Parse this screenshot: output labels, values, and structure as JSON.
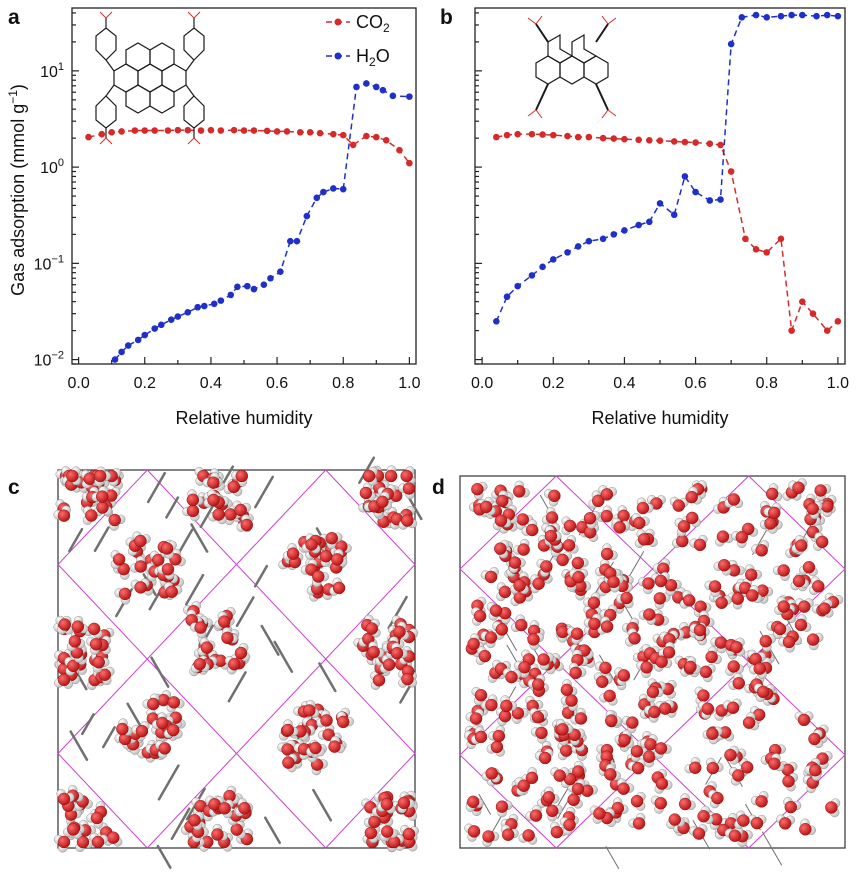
{
  "panels": {
    "a": "a",
    "b": "b",
    "c": "c",
    "d": "d"
  },
  "colors": {
    "co2": "#d62a2a",
    "h2o": "#1f2fc8",
    "oxygen": "#d21c1c",
    "hydrogen": "#eeeeee",
    "framework": "#707070",
    "cell_edge": "#d040d0"
  },
  "legend": {
    "co2_base": "CO",
    "co2_sub": "2",
    "h2o_h": "H",
    "h2o_sub": "2",
    "h2o_o": "O"
  },
  "y_axis": {
    "title_main": "Gas adsorption (mmol g",
    "title_sup": "−1",
    "title_end": ")",
    "ticks": [
      {
        "base": "10",
        "exp": "−2"
      },
      {
        "base": "10",
        "exp": "−1"
      },
      {
        "base": "10",
        "exp": "0"
      },
      {
        "base": "10",
        "exp": "1"
      }
    ]
  },
  "chart_data": [
    {
      "type": "line",
      "panel": "a",
      "xlabel": "Relative humidity",
      "ylabel": "Gas adsorption (mmol g−1)",
      "y_scale": "log",
      "xlim": [
        -0.02,
        1.02
      ],
      "ylim": [
        0.009,
        45
      ],
      "xticks": [
        "0.0",
        "0.2",
        "0.4",
        "0.6",
        "0.8",
        "1.0"
      ],
      "legend_position": "top-right",
      "series": [
        {
          "name": "CO2",
          "color": "#d62a2a",
          "x": [
            0.03,
            0.07,
            0.1,
            0.13,
            0.17,
            0.2,
            0.23,
            0.27,
            0.3,
            0.33,
            0.37,
            0.4,
            0.43,
            0.47,
            0.5,
            0.53,
            0.57,
            0.6,
            0.63,
            0.67,
            0.7,
            0.73,
            0.77,
            0.8,
            0.83,
            0.87,
            0.9,
            0.93,
            0.97,
            1.0
          ],
          "y": [
            2.05,
            2.2,
            2.3,
            2.35,
            2.4,
            2.4,
            2.4,
            2.4,
            2.42,
            2.42,
            2.4,
            2.42,
            2.4,
            2.42,
            2.4,
            2.4,
            2.38,
            2.35,
            2.35,
            2.3,
            2.3,
            2.25,
            2.2,
            2.15,
            1.7,
            2.1,
            2.05,
            1.9,
            1.5,
            1.1
          ]
        },
        {
          "name": "H2O",
          "color": "#1f2fc8",
          "x": [
            0.11,
            0.13,
            0.15,
            0.18,
            0.2,
            0.23,
            0.25,
            0.28,
            0.3,
            0.33,
            0.36,
            0.38,
            0.41,
            0.43,
            0.46,
            0.48,
            0.51,
            0.53,
            0.56,
            0.58,
            0.61,
            0.64,
            0.66,
            0.69,
            0.72,
            0.74,
            0.77,
            0.8,
            0.84,
            0.87,
            0.9,
            0.92,
            0.95,
            1.0
          ],
          "y": [
            0.01,
            0.012,
            0.014,
            0.016,
            0.018,
            0.021,
            0.023,
            0.026,
            0.028,
            0.031,
            0.035,
            0.036,
            0.038,
            0.041,
            0.047,
            0.057,
            0.058,
            0.054,
            0.06,
            0.07,
            0.082,
            0.17,
            0.17,
            0.31,
            0.48,
            0.55,
            0.6,
            0.59,
            6.8,
            7.4,
            6.8,
            6.3,
            5.5,
            5.4
          ]
        }
      ]
    },
    {
      "type": "line",
      "panel": "b",
      "xlabel": "Relative humidity",
      "ylabel": "",
      "y_scale": "log",
      "xlim": [
        -0.02,
        1.02
      ],
      "ylim": [
        0.009,
        45
      ],
      "xticks": [
        "0.0",
        "0.2",
        "0.4",
        "0.6",
        "0.8",
        "1.0"
      ],
      "series": [
        {
          "name": "CO2",
          "color": "#d62a2a",
          "x": [
            0.04,
            0.07,
            0.1,
            0.14,
            0.17,
            0.2,
            0.24,
            0.27,
            0.3,
            0.34,
            0.37,
            0.4,
            0.44,
            0.47,
            0.5,
            0.54,
            0.57,
            0.6,
            0.64,
            0.67,
            0.7,
            0.74,
            0.77,
            0.8,
            0.84,
            0.87,
            0.9,
            0.93,
            0.97,
            1.0
          ],
          "y": [
            2.05,
            2.15,
            2.2,
            2.2,
            2.18,
            2.15,
            2.1,
            2.05,
            2.05,
            2.0,
            1.98,
            1.95,
            1.92,
            1.9,
            1.88,
            1.85,
            1.82,
            1.8,
            1.75,
            1.7,
            0.9,
            0.18,
            0.14,
            0.13,
            0.18,
            0.02,
            0.04,
            0.03,
            0.02,
            0.025
          ]
        },
        {
          "name": "H2O",
          "color": "#1f2fc8",
          "x": [
            0.04,
            0.07,
            0.1,
            0.14,
            0.17,
            0.2,
            0.24,
            0.27,
            0.3,
            0.34,
            0.37,
            0.4,
            0.44,
            0.47,
            0.5,
            0.54,
            0.57,
            0.6,
            0.64,
            0.67,
            0.7,
            0.73,
            0.77,
            0.8,
            0.84,
            0.87,
            0.9,
            0.94,
            0.97,
            1.0
          ],
          "y": [
            0.025,
            0.045,
            0.058,
            0.075,
            0.092,
            0.11,
            0.13,
            0.15,
            0.17,
            0.18,
            0.2,
            0.22,
            0.25,
            0.27,
            0.42,
            0.32,
            0.8,
            0.55,
            0.45,
            0.46,
            19,
            36,
            38,
            36,
            37,
            38,
            38,
            37,
            38,
            37
          ]
        }
      ]
    }
  ]
}
